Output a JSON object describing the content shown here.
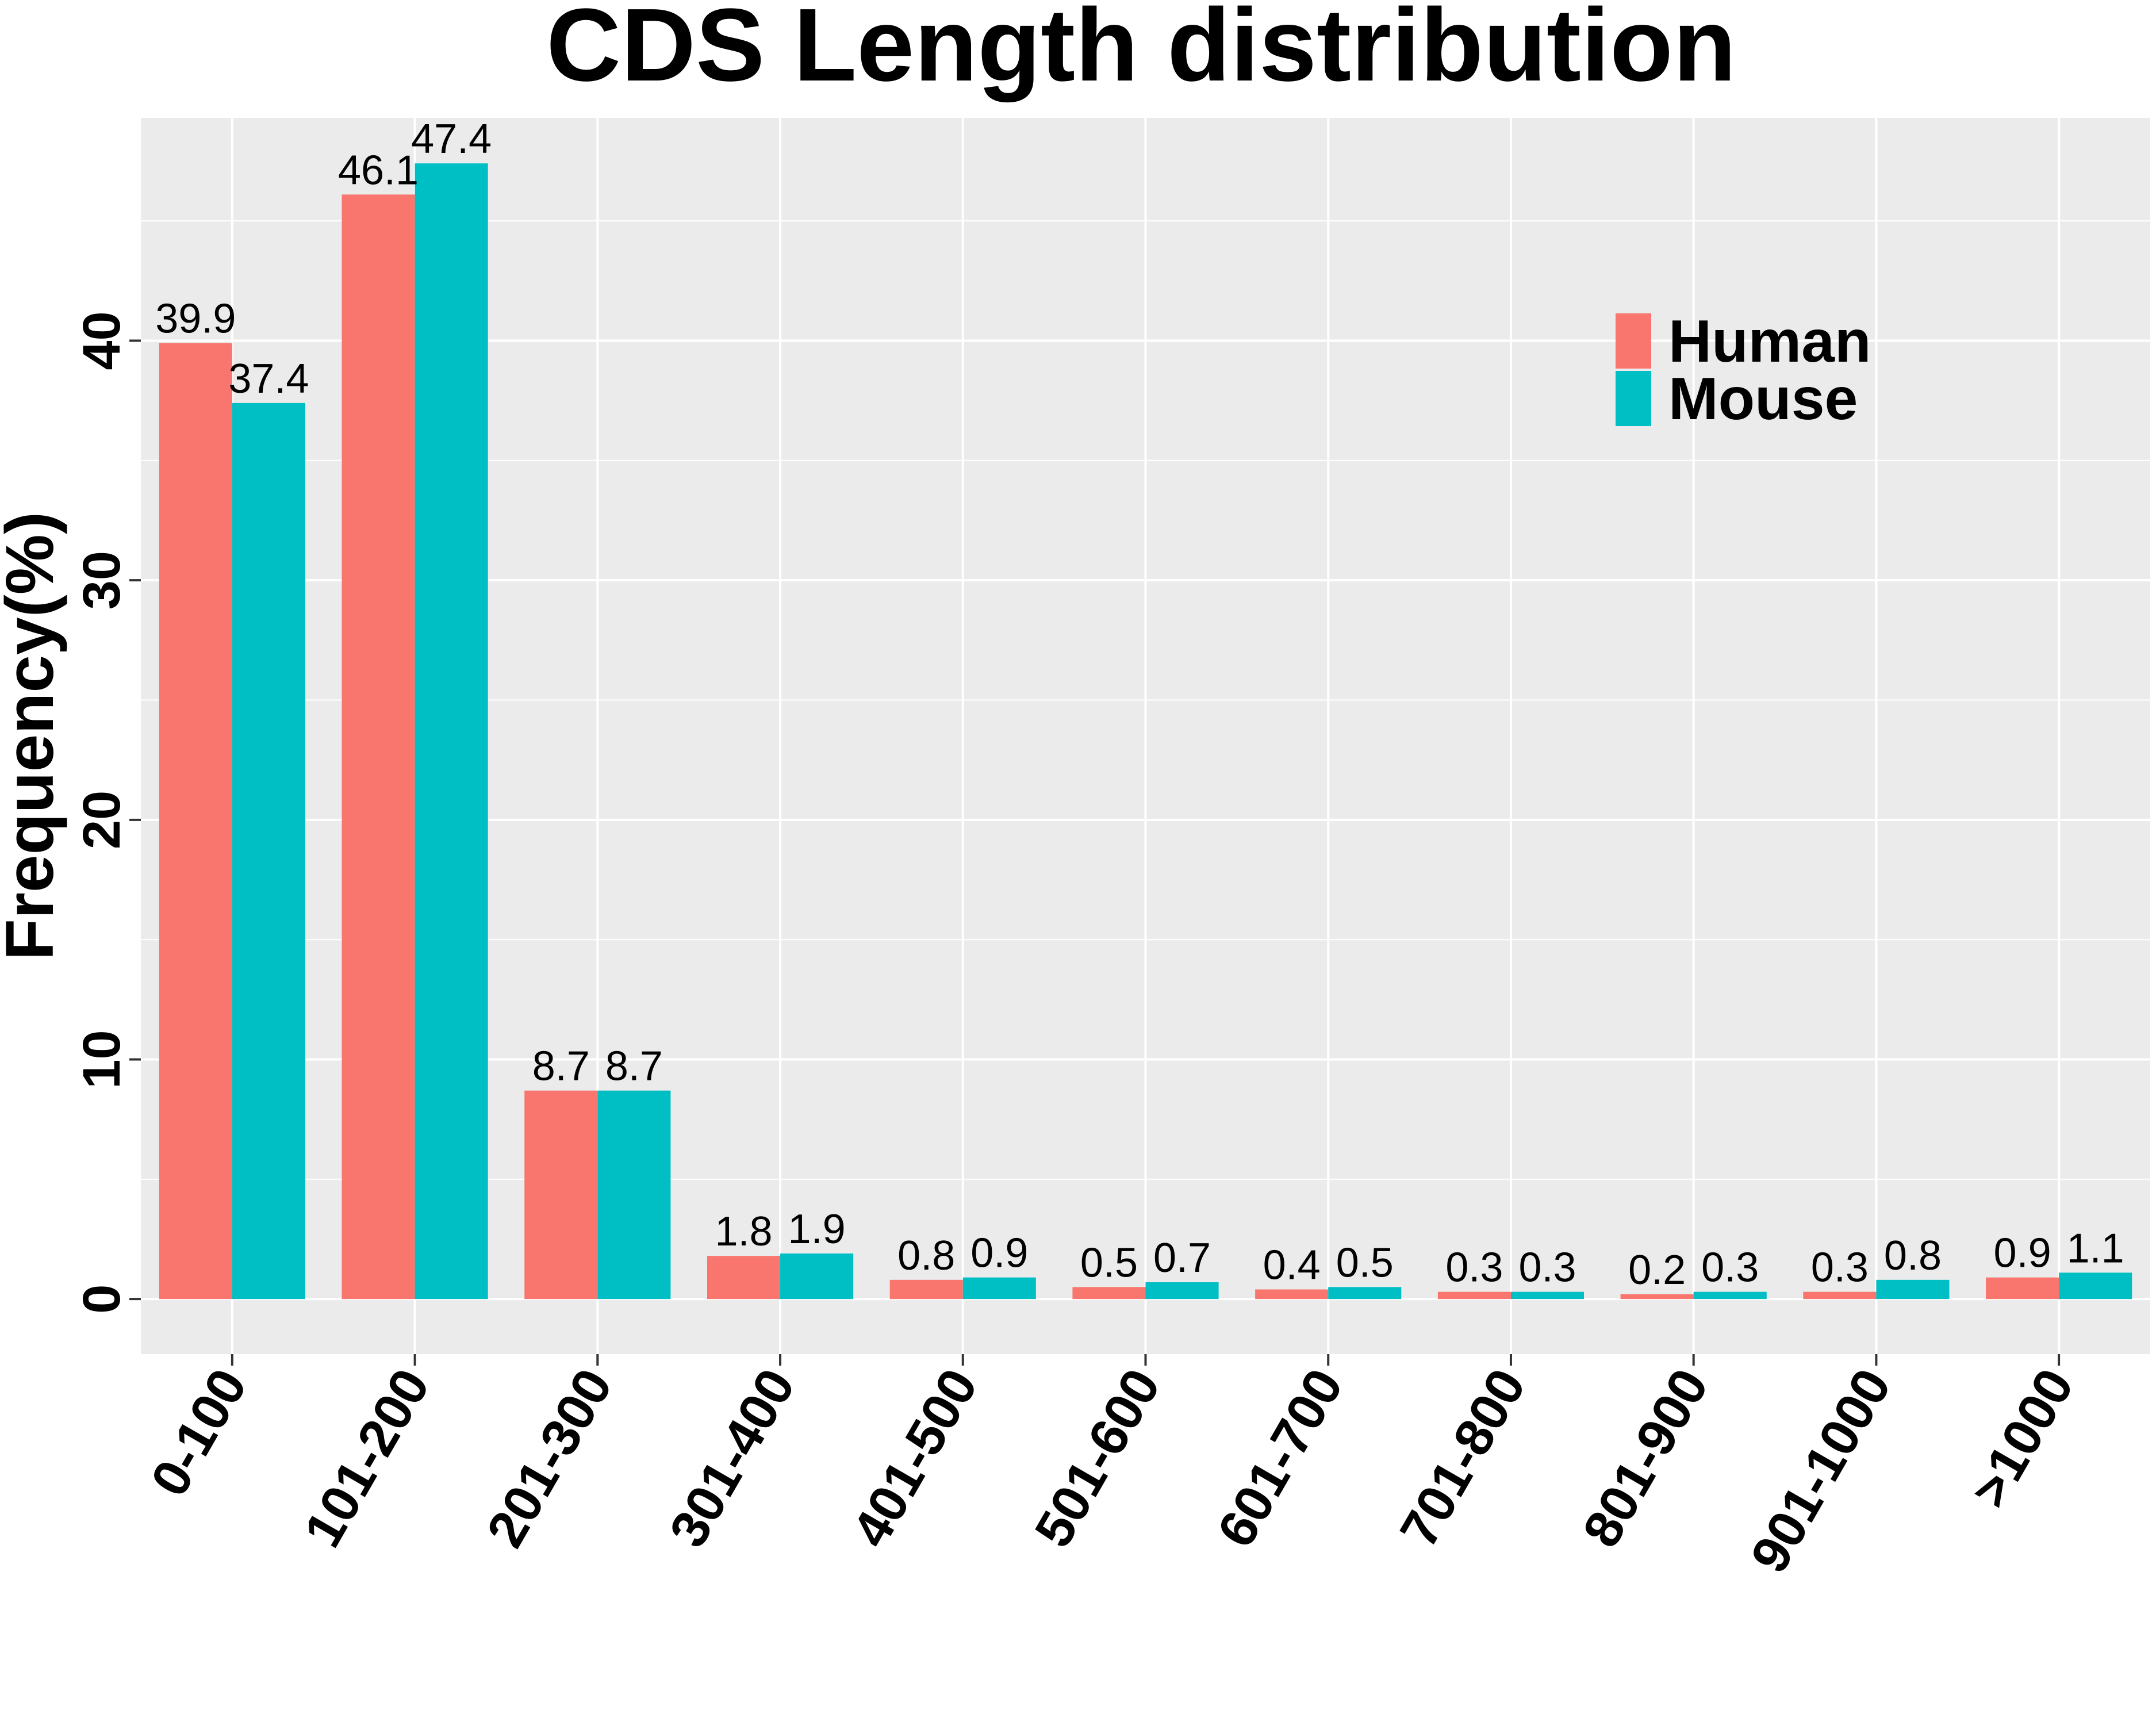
{
  "chart_data": {
    "type": "bar",
    "title": "CDS Length distribution",
    "xlabel": "",
    "ylabel": "Frequency(%)",
    "categories": [
      "0-100",
      "101-200",
      "201-300",
      "301-400",
      "401-500",
      "501-600",
      "601-700",
      "701-800",
      "801-900",
      "901-1000",
      ">1000"
    ],
    "series": [
      {
        "name": "Human",
        "color": "#F8766D",
        "values": [
          39.9,
          46.1,
          8.7,
          1.8,
          0.8,
          0.5,
          0.4,
          0.3,
          0.2,
          0.3,
          0.9
        ],
        "labels": [
          "39.9",
          "46.1",
          "8.7",
          "1.8",
          "0.8",
          "0.5",
          "0.4",
          "0.3",
          "0.2",
          "0.3",
          "0.9"
        ]
      },
      {
        "name": "Mouse",
        "color": "#00BFC4",
        "values": [
          37.4,
          47.4,
          8.7,
          1.9,
          0.9,
          0.7,
          0.5,
          0.3,
          0.3,
          0.8,
          1.1
        ],
        "labels": [
          "37.4",
          "47.4",
          "8.7",
          "1.9",
          "0.9",
          "0.7",
          "0.5",
          "0.3",
          "0.3",
          "0.8",
          "1.1"
        ]
      }
    ],
    "ylim": [
      -2.3,
      49.3
    ],
    "yticks": [
      0,
      10,
      20,
      30,
      40
    ],
    "ytick_labels": [
      "0",
      "10",
      "20",
      "30",
      "40"
    ],
    "grid": true,
    "legend_position": "top-right",
    "panel_background": "#EBEBEB",
    "gridline_color": "#FFFFFF"
  }
}
